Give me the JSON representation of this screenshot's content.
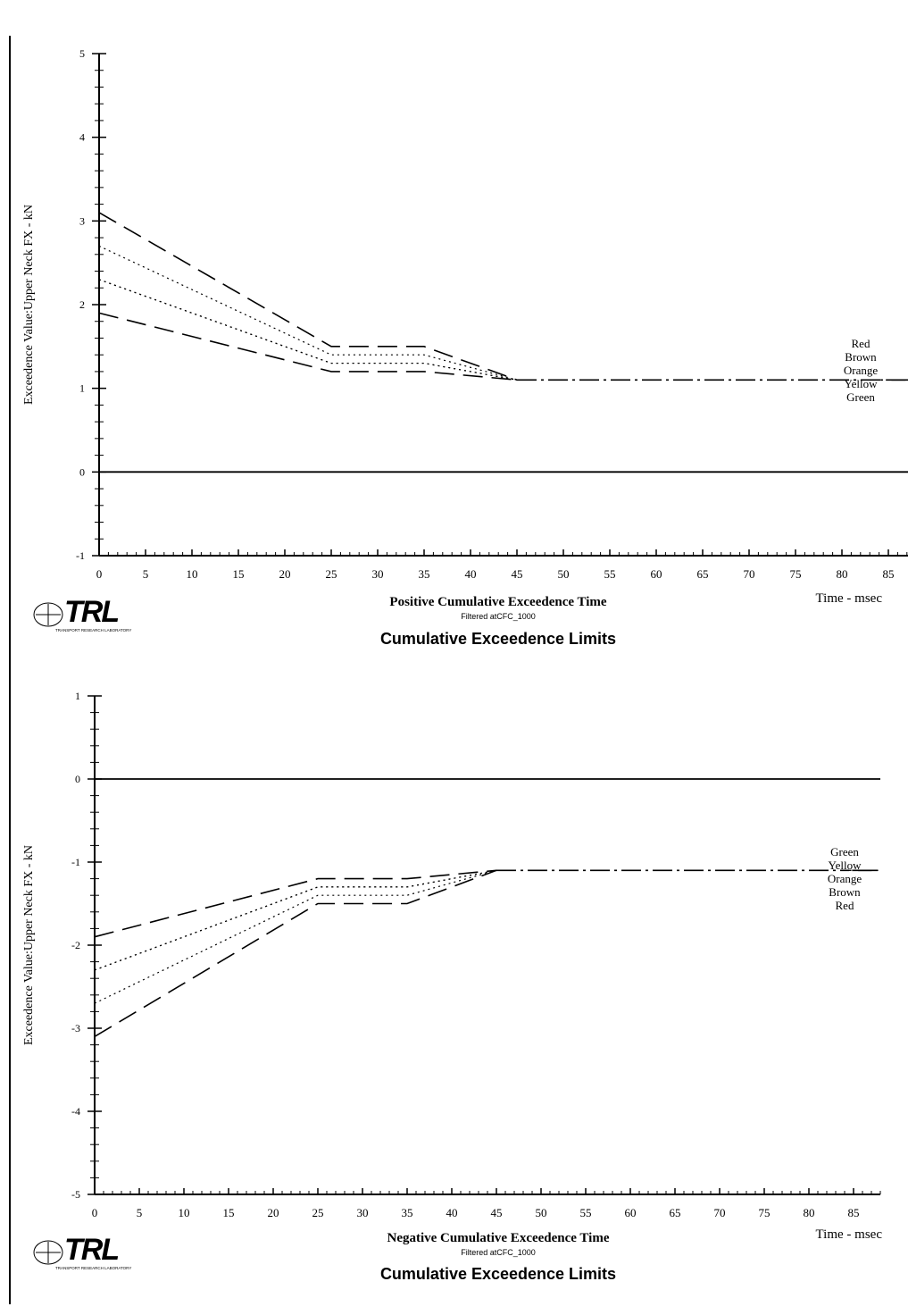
{
  "logo_text": "TRL",
  "logo_caption": "TRANSPORT RESEARCH LABORATORY",
  "chart_data": [
    {
      "type": "line",
      "title": "Cumulative Exceedence Limits",
      "xlabel": "Positive Cumulative Exceedence Time",
      "filter_note": "Filtered atCFC_1000",
      "x_unit_label": "Time - msec",
      "ylabel": "Exceedence Value:Upper Neck FX - kN",
      "xlim": [
        0,
        88
      ],
      "ylim": [
        -1,
        5
      ],
      "x_ticks": [
        0,
        5,
        10,
        15,
        20,
        25,
        30,
        35,
        40,
        45,
        50,
        55,
        60,
        65,
        70,
        75,
        80,
        85
      ],
      "y_ticks": [
        -1,
        0,
        1,
        2,
        3,
        4,
        5
      ],
      "grid": false,
      "legend_order": [
        "Red",
        "Brown",
        "Orange",
        "Yellow",
        "Green"
      ],
      "baseline": 0,
      "series": [
        {
          "name": "Red",
          "style": "dashed",
          "x": [
            0,
            25,
            35,
            45,
            88
          ],
          "y": [
            3.1,
            1.5,
            1.5,
            1.1,
            1.1
          ]
        },
        {
          "name": "Brown",
          "style": "dotted",
          "x": [
            0,
            25,
            35,
            45,
            88
          ],
          "y": [
            2.7,
            1.4,
            1.4,
            1.1,
            1.1
          ]
        },
        {
          "name": "Orange",
          "style": "dotted",
          "x": [
            0,
            25,
            35,
            45,
            88
          ],
          "y": [
            2.3,
            1.3,
            1.3,
            1.1,
            1.1
          ]
        },
        {
          "name": "Yellow",
          "style": "dotted",
          "x": [
            0,
            25,
            35,
            45,
            88
          ],
          "y": [
            2.3,
            1.3,
            1.3,
            1.1,
            1.1
          ]
        },
        {
          "name": "Green",
          "style": "dashed",
          "x": [
            0,
            25,
            35,
            45,
            88
          ],
          "y": [
            1.9,
            1.2,
            1.2,
            1.1,
            1.1
          ]
        }
      ]
    },
    {
      "type": "line",
      "title": "Cumulative Exceedence Limits",
      "xlabel": "Negative Cumulative Exceedence Time",
      "filter_note": "Filtered atCFC_1000",
      "x_unit_label": "Time - msec",
      "ylabel": "Exceedence Value:Upper Neck FX - kN",
      "xlim": [
        0,
        88
      ],
      "ylim": [
        -5,
        1
      ],
      "x_ticks": [
        0,
        5,
        10,
        15,
        20,
        25,
        30,
        35,
        40,
        45,
        50,
        55,
        60,
        65,
        70,
        75,
        80,
        85
      ],
      "y_ticks": [
        -5,
        -4,
        -3,
        -2,
        -1,
        0,
        1
      ],
      "grid": false,
      "legend_order": [
        "Green",
        "Yellow",
        "Orange",
        "Brown",
        "Red"
      ],
      "baseline": 0,
      "series": [
        {
          "name": "Green",
          "style": "dashed",
          "x": [
            0,
            25,
            35,
            45,
            88
          ],
          "y": [
            -1.9,
            -1.2,
            -1.2,
            -1.1,
            -1.1
          ]
        },
        {
          "name": "Yellow",
          "style": "dotted",
          "x": [
            0,
            25,
            35,
            45,
            88
          ],
          "y": [
            -2.3,
            -1.3,
            -1.3,
            -1.1,
            -1.1
          ]
        },
        {
          "name": "Orange",
          "style": "dotted",
          "x": [
            0,
            25,
            35,
            45,
            88
          ],
          "y": [
            -2.3,
            -1.3,
            -1.3,
            -1.1,
            -1.1
          ]
        },
        {
          "name": "Brown",
          "style": "dotted",
          "x": [
            0,
            25,
            35,
            45,
            88
          ],
          "y": [
            -2.7,
            -1.4,
            -1.4,
            -1.1,
            -1.1
          ]
        },
        {
          "name": "Red",
          "style": "dashed",
          "x": [
            0,
            25,
            35,
            45,
            88
          ],
          "y": [
            -3.1,
            -1.5,
            -1.5,
            -1.1,
            -1.1
          ]
        }
      ]
    }
  ]
}
